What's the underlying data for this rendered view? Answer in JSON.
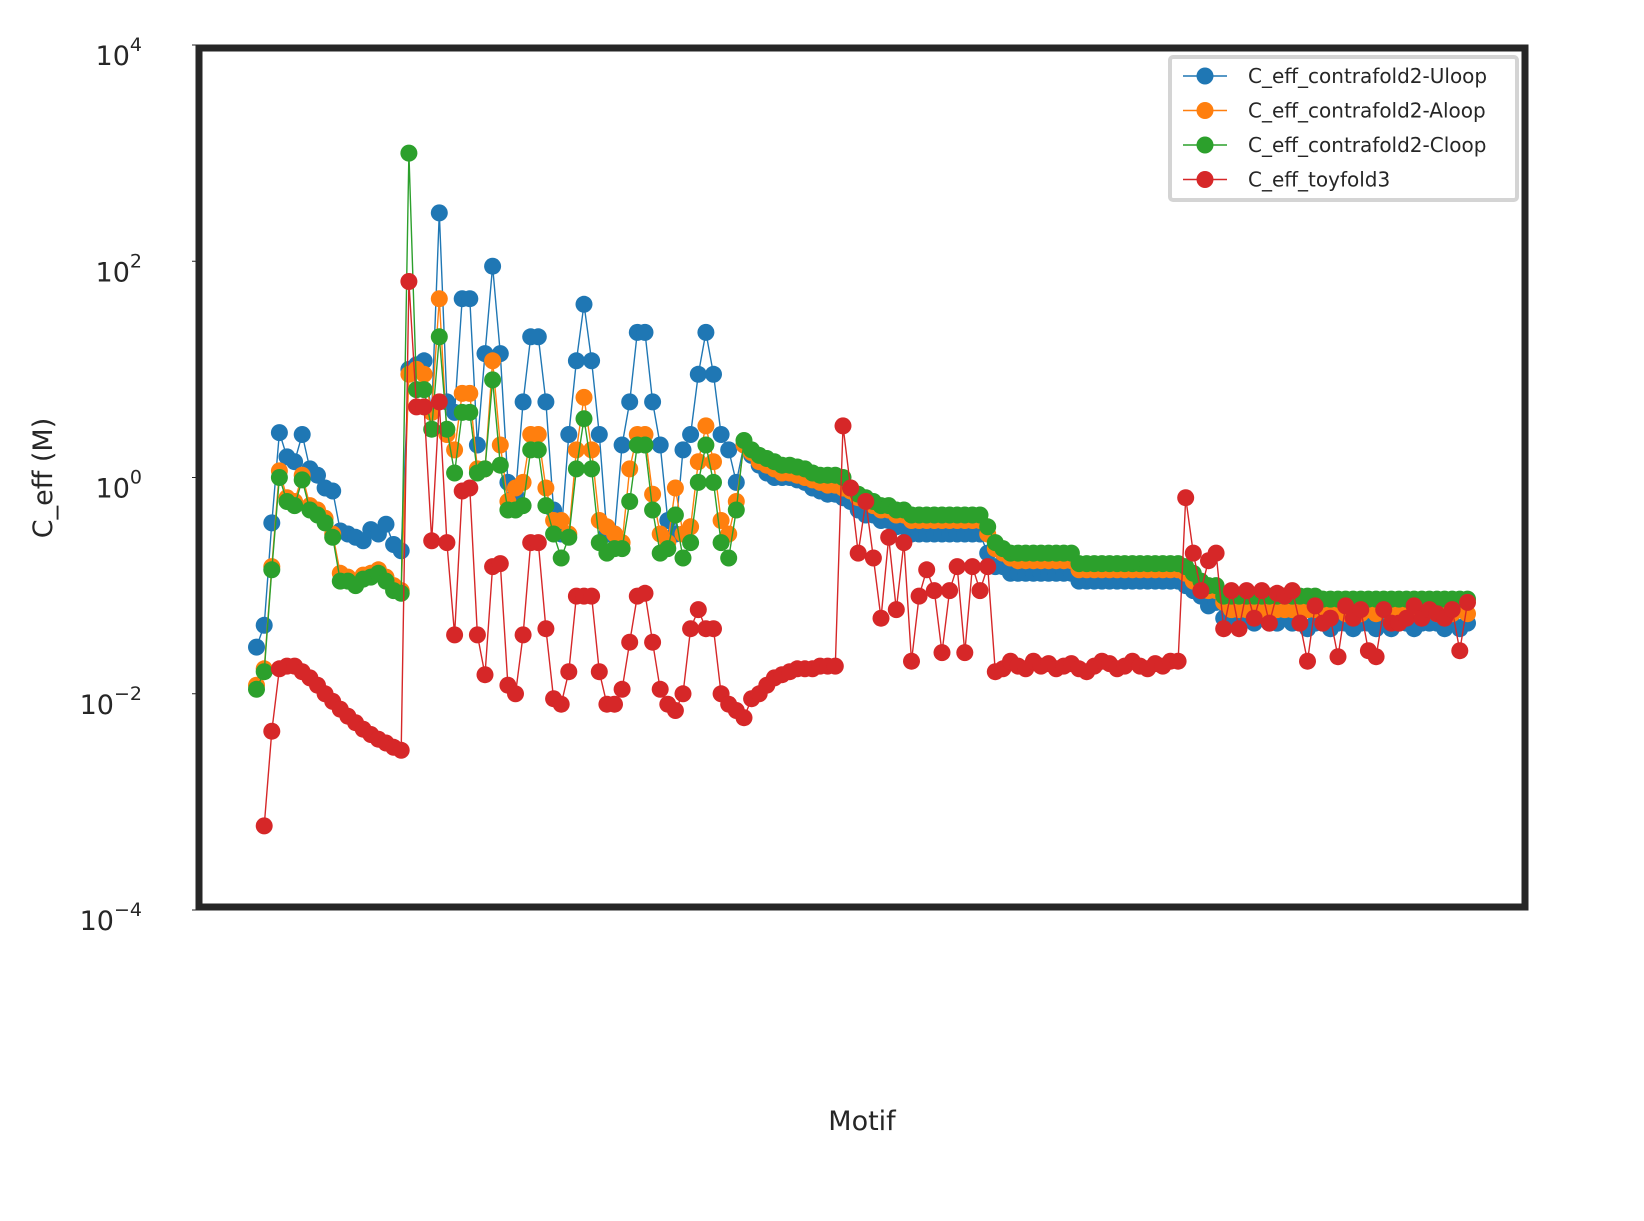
{
  "chart_data": {
    "type": "line",
    "xlabel": "Motif",
    "ylabel": "C_eff (M)",
    "log_y": true,
    "ylim": [
      0.0001,
      10000
    ],
    "yticks": [
      {
        "value": 0.0001,
        "label": "10^−4"
      },
      {
        "value": 0.01,
        "label": "10^−2"
      },
      {
        "value": 1,
        "label": "10^0"
      },
      {
        "value": 100,
        "label": "10^2"
      },
      {
        "value": 10000,
        "label": "10^4"
      }
    ],
    "grid": false,
    "legend": "upper right",
    "series": [
      {
        "name": "C_eff_contrafold2-Uloop",
        "color": "#1f77b4",
        "values": [
          0.027,
          0.043,
          0.38,
          2.6,
          1.55,
          1.4,
          2.5,
          1.2,
          1.05,
          0.8,
          0.75,
          0.32,
          0.3,
          0.28,
          0.26,
          0.33,
          0.3,
          0.37,
          0.24,
          0.21,
          10,
          11,
          12,
          4,
          280,
          5,
          4,
          45,
          45,
          2,
          14,
          90,
          14,
          0.9,
          0.7,
          5,
          20,
          20,
          5,
          0.5,
          0.3,
          2.5,
          12,
          40,
          12,
          2.5,
          0.3,
          0.3,
          2,
          5,
          22,
          22,
          5,
          2,
          0.4,
          0.3,
          1.8,
          2.5,
          9,
          22,
          9,
          2.5,
          1.8,
          0.9,
          2,
          1.6,
          1.3,
          1.1,
          1.0,
          1.0,
          1.0,
          0.95,
          0.9,
          0.8,
          0.75,
          0.7,
          0.7,
          0.65,
          0.6,
          0.5,
          0.45,
          0.45,
          0.4,
          0.4,
          0.35,
          0.35,
          0.3,
          0.3,
          0.3,
          0.3,
          0.3,
          0.3,
          0.3,
          0.3,
          0.3,
          0.3,
          0.2,
          0.15,
          0.15,
          0.13,
          0.13,
          0.13,
          0.13,
          0.13,
          0.13,
          0.13,
          0.13,
          0.13,
          0.11,
          0.11,
          0.11,
          0.11,
          0.11,
          0.11,
          0.11,
          0.11,
          0.11,
          0.11,
          0.11,
          0.11,
          0.11,
          0.11,
          0.1,
          0.09,
          0.08,
          0.065,
          0.07,
          0.05,
          0.05,
          0.045,
          0.05,
          0.045,
          0.05,
          0.045,
          0.045,
          0.05,
          0.045,
          0.045,
          0.04,
          0.045,
          0.045,
          0.04,
          0.045,
          0.045,
          0.04,
          0.045,
          0.045,
          0.04,
          0.045,
          0.04,
          0.045,
          0.045,
          0.04,
          0.045,
          0.045,
          0.045,
          0.04,
          0.045,
          0.04,
          0.045
        ]
      },
      {
        "name": "C_eff_contrafold2-Aloop",
        "color": "#ff7f0e",
        "values": [
          0.012,
          0.017,
          0.15,
          1.15,
          0.65,
          0.6,
          1.05,
          0.55,
          0.5,
          0.42,
          0.3,
          0.13,
          0.12,
          0.11,
          0.125,
          0.13,
          0.14,
          0.12,
          0.1,
          0.09,
          9,
          10,
          9,
          4,
          45,
          2.5,
          1.8,
          6,
          6,
          1.2,
          1.2,
          12,
          2,
          0.6,
          0.8,
          0.9,
          2.5,
          2.5,
          0.8,
          0.4,
          0.4,
          0.3,
          1.8,
          5.5,
          1.8,
          0.4,
          0.35,
          0.3,
          0.25,
          1.2,
          2.5,
          2.5,
          0.7,
          0.3,
          0.25,
          0.8,
          0.3,
          0.35,
          1.4,
          3,
          1.4,
          0.4,
          0.3,
          0.6,
          2,
          1.7,
          1.4,
          1.3,
          1.2,
          1.1,
          1.1,
          1.05,
          1.0,
          0.95,
          0.9,
          0.85,
          0.85,
          0.8,
          0.75,
          0.65,
          0.6,
          0.55,
          0.5,
          0.5,
          0.45,
          0.45,
          0.4,
          0.4,
          0.4,
          0.4,
          0.4,
          0.4,
          0.4,
          0.4,
          0.4,
          0.4,
          0.3,
          0.22,
          0.2,
          0.18,
          0.17,
          0.17,
          0.17,
          0.17,
          0.17,
          0.17,
          0.17,
          0.17,
          0.14,
          0.14,
          0.14,
          0.14,
          0.14,
          0.14,
          0.14,
          0.14,
          0.14,
          0.14,
          0.14,
          0.14,
          0.14,
          0.14,
          0.13,
          0.11,
          0.1,
          0.09,
          0.09,
          0.07,
          0.06,
          0.06,
          0.06,
          0.06,
          0.06,
          0.06,
          0.06,
          0.06,
          0.06,
          0.06,
          0.06,
          0.06,
          0.06,
          0.055,
          0.06,
          0.055,
          0.06,
          0.055,
          0.06,
          0.055,
          0.06,
          0.055,
          0.06,
          0.055,
          0.06,
          0.055,
          0.06,
          0.055,
          0.06,
          0.055,
          0.06,
          0.055
        ]
      },
      {
        "name": "C_eff_contrafold2-Cloop",
        "color": "#2ca02c",
        "values": [
          0.011,
          0.016,
          0.14,
          1.0,
          0.6,
          0.55,
          0.95,
          0.5,
          0.45,
          0.38,
          0.28,
          0.11,
          0.11,
          0.1,
          0.115,
          0.12,
          0.13,
          0.11,
          0.09,
          0.085,
          1000,
          6.5,
          6.5,
          2.8,
          20,
          2.8,
          1.1,
          4,
          4,
          1.1,
          1.2,
          8,
          1.3,
          0.5,
          0.5,
          0.55,
          1.8,
          1.8,
          0.55,
          0.3,
          0.18,
          0.28,
          1.2,
          3.5,
          1.2,
          0.25,
          0.2,
          0.22,
          0.22,
          0.6,
          2,
          2,
          0.5,
          0.2,
          0.22,
          0.45,
          0.18,
          0.25,
          0.9,
          2,
          0.9,
          0.25,
          0.18,
          0.5,
          2.2,
          1.8,
          1.6,
          1.5,
          1.4,
          1.3,
          1.3,
          1.25,
          1.2,
          1.1,
          1.05,
          1.05,
          1.05,
          1.0,
          0.8,
          0.7,
          0.65,
          0.6,
          0.55,
          0.55,
          0.5,
          0.5,
          0.45,
          0.45,
          0.45,
          0.45,
          0.45,
          0.45,
          0.45,
          0.45,
          0.45,
          0.45,
          0.35,
          0.25,
          0.22,
          0.2,
          0.2,
          0.2,
          0.2,
          0.2,
          0.2,
          0.2,
          0.2,
          0.2,
          0.16,
          0.16,
          0.16,
          0.16,
          0.16,
          0.16,
          0.16,
          0.16,
          0.16,
          0.16,
          0.16,
          0.16,
          0.16,
          0.16,
          0.15,
          0.13,
          0.11,
          0.1,
          0.1,
          0.08,
          0.08,
          0.08,
          0.08,
          0.08,
          0.08,
          0.08,
          0.08,
          0.08,
          0.08,
          0.08,
          0.08,
          0.08,
          0.075,
          0.075,
          0.075,
          0.075,
          0.075,
          0.075,
          0.075,
          0.075,
          0.075,
          0.075,
          0.075,
          0.075,
          0.075,
          0.075,
          0.075,
          0.075,
          0.075,
          0.075,
          0.075,
          0.075
        ]
      },
      {
        "name": "C_eff_toyfold3",
        "color": "#d62728",
        "values": [
          null,
          0.0006,
          0.0045,
          0.017,
          0.018,
          0.018,
          0.016,
          0.014,
          0.012,
          0.01,
          0.0085,
          0.0072,
          0.0062,
          0.0054,
          0.0047,
          0.0042,
          0.0038,
          0.0035,
          0.0032,
          0.003,
          65,
          4.5,
          4.5,
          0.26,
          5,
          0.25,
          0.035,
          0.75,
          0.8,
          0.035,
          0.015,
          0.15,
          0.16,
          0.012,
          0.01,
          0.035,
          0.25,
          0.25,
          0.04,
          0.009,
          0.008,
          0.016,
          0.08,
          0.08,
          0.08,
          0.016,
          0.008,
          0.008,
          0.011,
          0.03,
          0.08,
          0.085,
          0.03,
          0.011,
          0.008,
          0.007,
          0.01,
          0.04,
          0.06,
          0.04,
          0.04,
          0.01,
          0.008,
          0.007,
          0.006,
          0.009,
          0.01,
          0.012,
          0.014,
          0.015,
          0.016,
          0.017,
          0.017,
          0.017,
          0.018,
          0.018,
          0.018,
          3,
          0.8,
          0.2,
          0.6,
          0.18,
          0.05,
          0.28,
          0.06,
          0.25,
          0.02,
          0.08,
          0.14,
          0.09,
          0.024,
          0.09,
          0.15,
          0.024,
          0.15,
          0.09,
          0.15,
          0.016,
          0.017,
          0.02,
          0.018,
          0.017,
          0.02,
          0.018,
          0.019,
          0.017,
          0.018,
          0.019,
          0.017,
          0.016,
          0.018,
          0.02,
          0.019,
          0.017,
          0.018,
          0.02,
          0.018,
          0.017,
          0.019,
          0.018,
          0.02,
          0.02,
          0.65,
          0.2,
          0.09,
          0.17,
          0.2,
          0.04,
          0.09,
          0.04,
          0.09,
          0.05,
          0.09,
          0.045,
          0.085,
          0.08,
          0.09,
          0.045,
          0.02,
          0.065,
          0.045,
          0.05,
          0.022,
          0.065,
          0.05,
          0.06,
          0.025,
          0.022,
          0.06,
          0.045,
          0.045,
          0.05,
          0.065,
          0.05,
          0.06,
          0.055,
          0.05,
          0.06,
          0.025,
          0.07
        ]
      }
    ]
  }
}
